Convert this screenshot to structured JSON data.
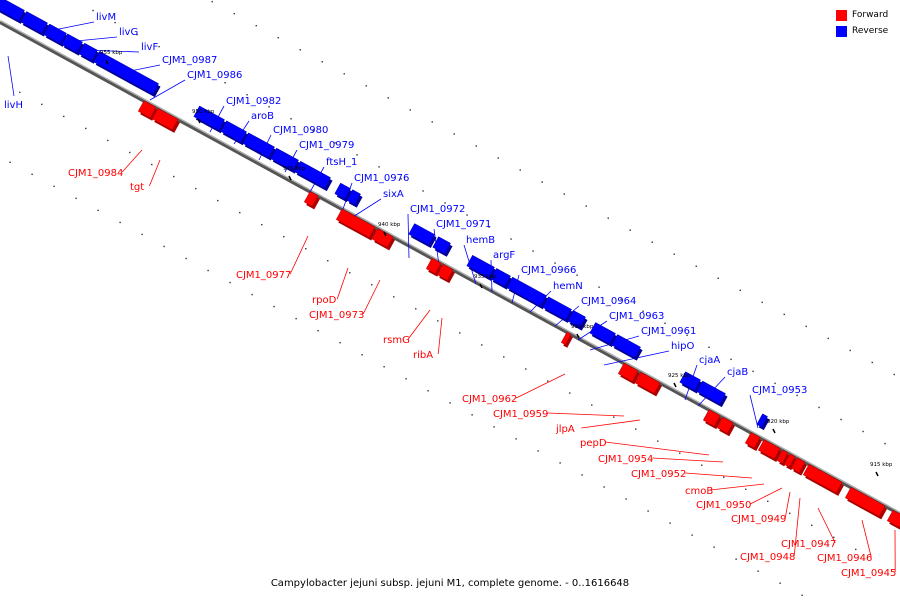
{
  "legend": {
    "forward": {
      "label": "Forward",
      "color": "#ff0000"
    },
    "reverse": {
      "label": "Reverse",
      "color": "#0000ff"
    }
  },
  "caption": "Campylobacter jejuni subsp. jejuni M1, complete genome. - 0..1616648",
  "ticks": [
    "955 kbp",
    "950 kbp",
    "945 kbp",
    "940 kbp",
    "935 kbp",
    "930 kbp",
    "925 kbp",
    "920 kbp",
    "915 kbp"
  ],
  "reverse_genes": [
    "livM",
    "livG",
    "livF",
    "CJM1_0987",
    "CJM1_0986",
    "livH",
    "CJM1_0982",
    "aroB",
    "CJM1_0980",
    "CJM1_0979",
    "ftsH_1",
    "CJM1_0976",
    "sixA",
    "CJM1_0972",
    "CJM1_0971",
    "hemB",
    "argF",
    "CJM1_0966",
    "hemN",
    "CJM1_0964",
    "CJM1_0963",
    "CJM1_0961",
    "hipO",
    "cjaA",
    "cjaB",
    "CJM1_0953"
  ],
  "forward_genes": [
    "CJM1_0984",
    "tgt",
    "CJM1_0977",
    "rpoD",
    "CJM1_0973",
    "rsmG",
    "ribA",
    "CJM1_0962",
    "CJM1_0959",
    "jlpA",
    "pepD",
    "CJM1_0954",
    "CJM1_0952",
    "cmoB",
    "CJM1_0950",
    "CJM1_0949",
    "CJM1_0947",
    "CJM1_0948",
    "CJM1_0946",
    "CJM1_0945"
  ]
}
